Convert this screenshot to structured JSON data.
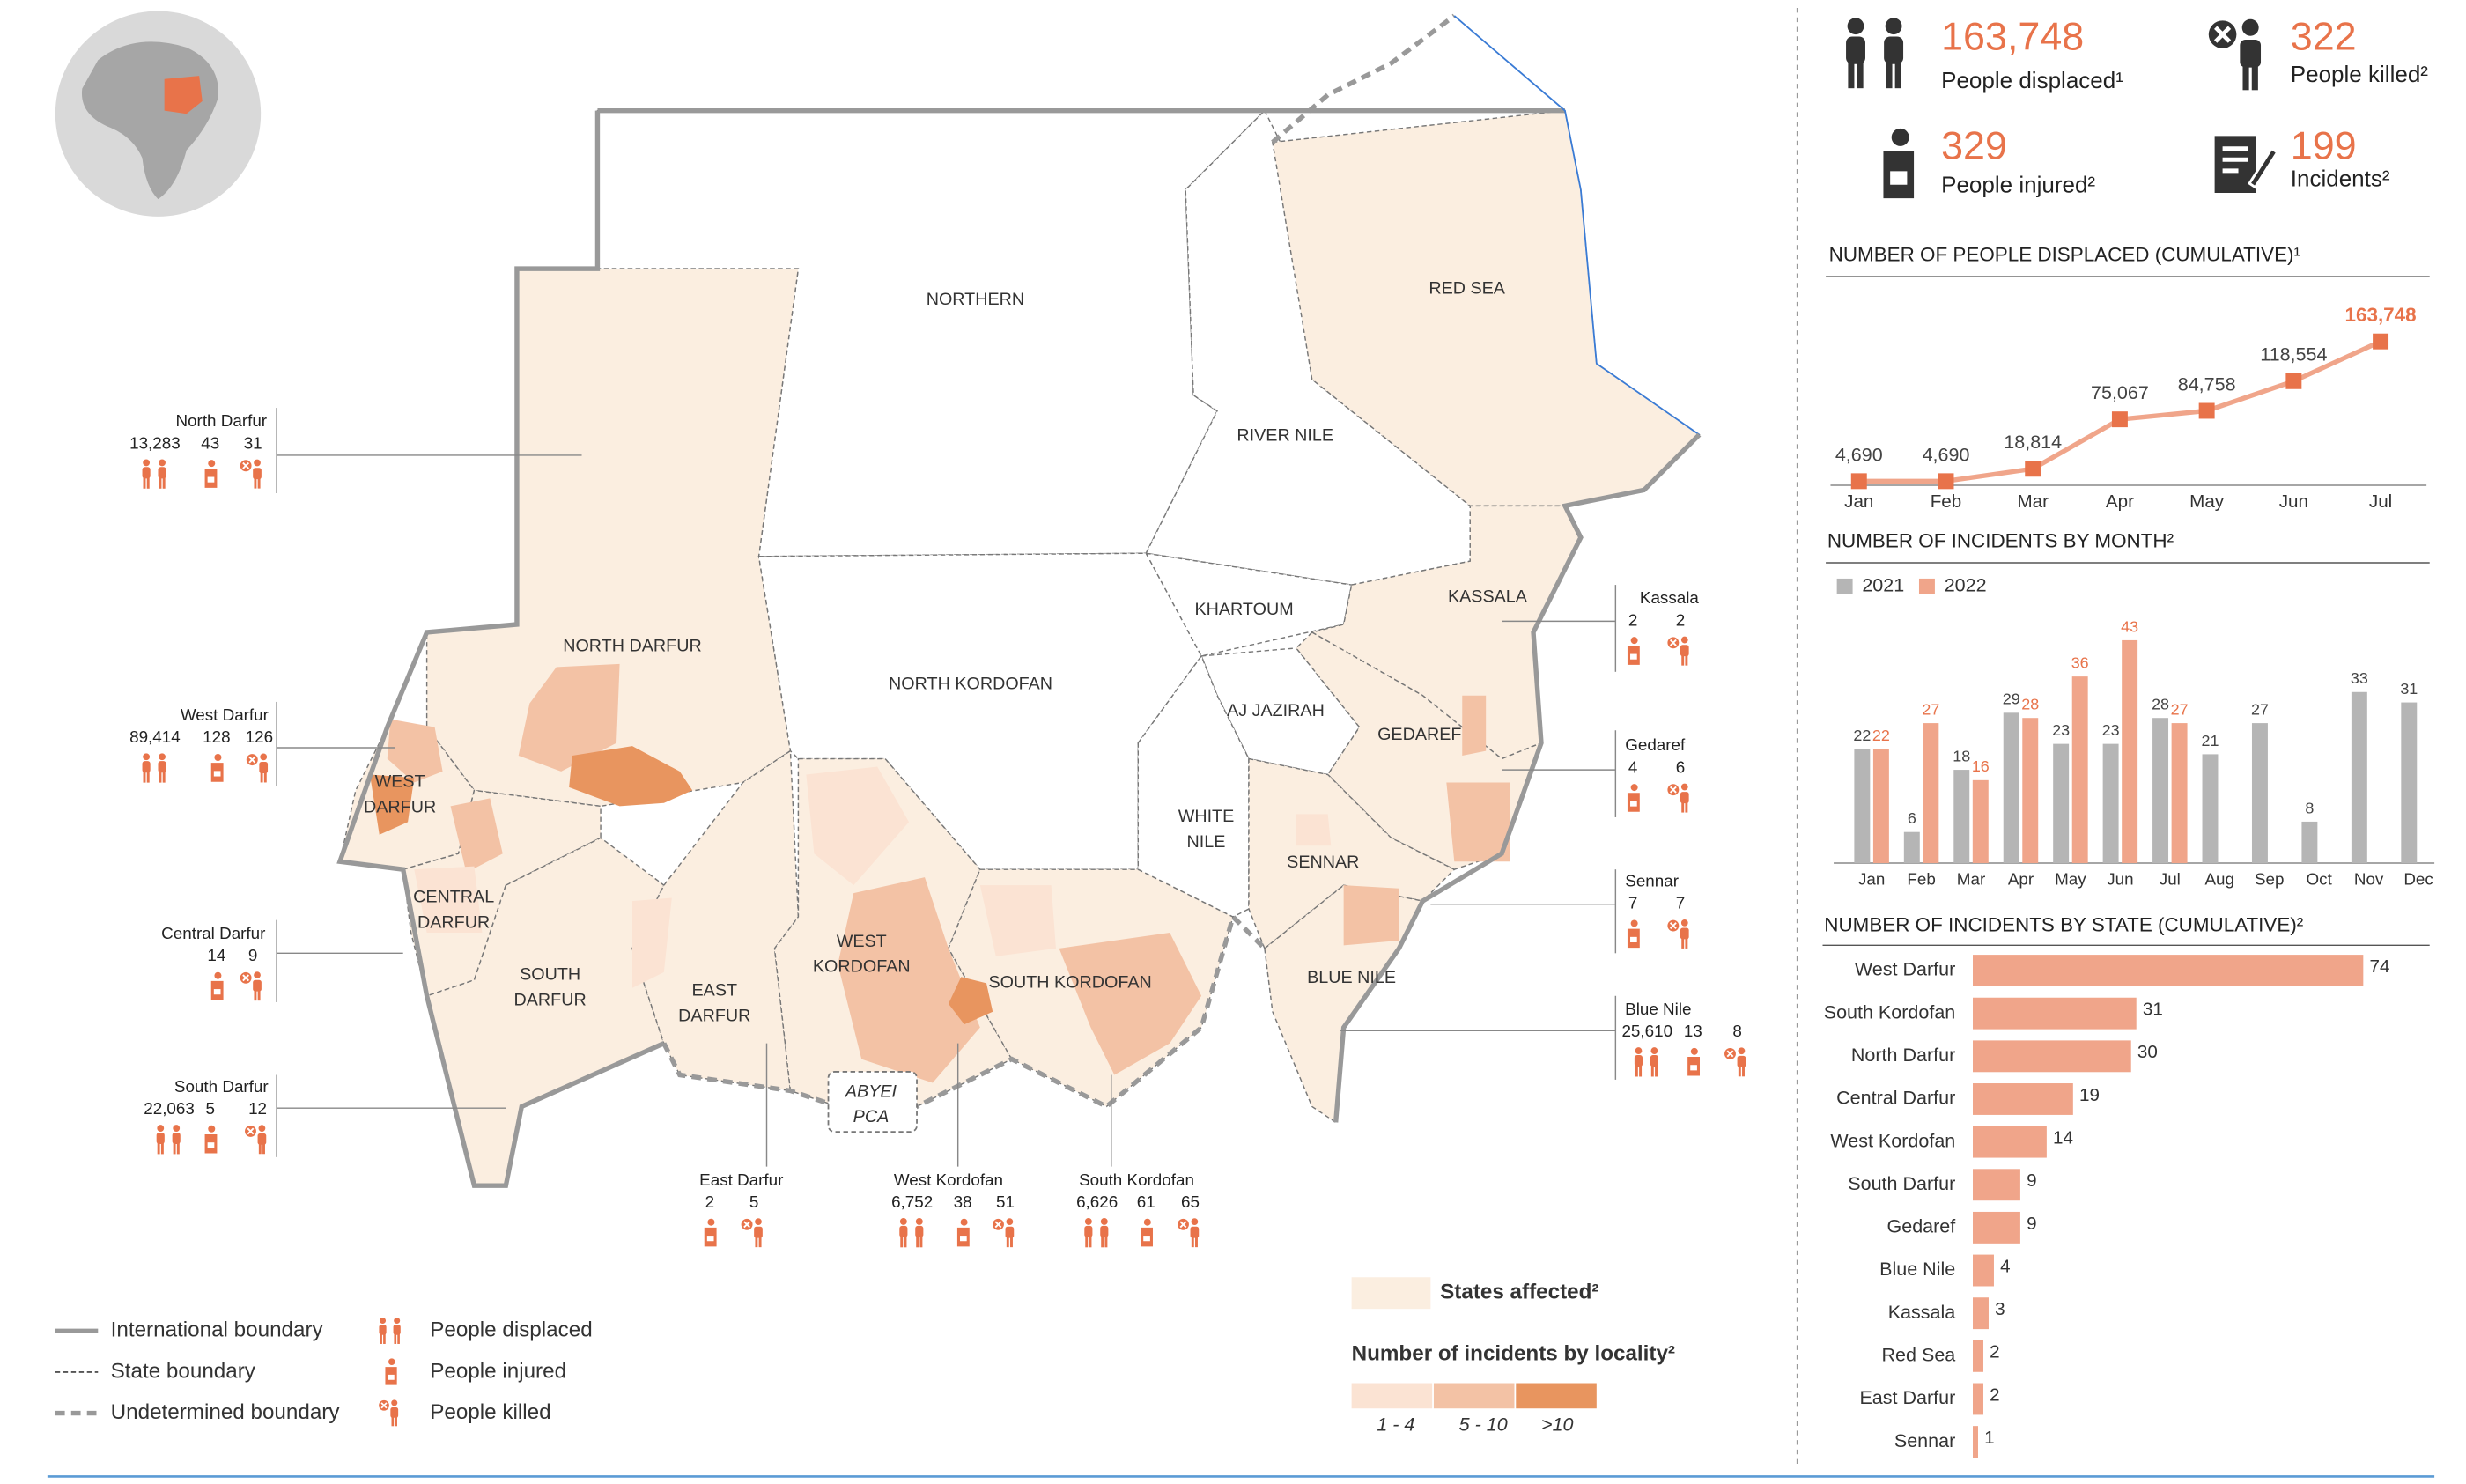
{
  "summary": [
    {
      "value": "163,748",
      "label": "People displaced¹"
    },
    {
      "value": "322",
      "label": "People killed²"
    },
    {
      "value": "329",
      "label": "People injured²"
    },
    {
      "value": "199",
      "label": "Incidents²"
    }
  ],
  "chart_data": [
    {
      "type": "line",
      "title": "NUMBER OF PEOPLE DISPLACED (CUMULATIVE)¹",
      "categories": [
        "Jan",
        "Feb",
        "Mar",
        "Apr",
        "May",
        "Jun",
        "Jul"
      ],
      "values": [
        4690,
        4690,
        18814,
        75067,
        84758,
        118554,
        163748
      ],
      "value_labels": [
        "4,690",
        "4,690",
        "18,814",
        "75,067",
        "84,758",
        "118,554",
        "163,748"
      ],
      "color": "#e8734a"
    },
    {
      "type": "bar",
      "title": "NUMBER OF INCIDENTS BY MONTH²",
      "categories": [
        "Jan",
        "Feb",
        "Mar",
        "Apr",
        "May",
        "Jun",
        "Jul",
        "Aug",
        "Sep",
        "Oct",
        "Nov",
        "Dec"
      ],
      "series": [
        {
          "name": "2021",
          "color": "#b5b5b5",
          "values": [
            22,
            6,
            18,
            29,
            23,
            23,
            28,
            21,
            27,
            8,
            33,
            31
          ]
        },
        {
          "name": "2022",
          "color": "#f0a58a",
          "values": [
            22,
            27,
            16,
            28,
            36,
            43,
            27,
            null,
            null,
            null,
            null,
            null
          ]
        }
      ]
    },
    {
      "type": "hbar",
      "title": "NUMBER OF INCIDENTS BY STATE (CUMULATIVE)²",
      "categories": [
        "West Darfur",
        "South Kordofan",
        "North Darfur",
        "Central Darfur",
        "West Kordofan",
        "South Darfur",
        "Gedaref",
        "Blue Nile",
        "Kassala",
        "Red Sea",
        "East Darfur",
        "Sennar"
      ],
      "values": [
        74,
        31,
        30,
        19,
        14,
        9,
        9,
        4,
        3,
        2,
        2,
        1
      ],
      "color": "#f0a58a"
    }
  ],
  "map": {
    "states": [
      {
        "lines": [
          "NORTHERN"
        ]
      },
      {
        "lines": [
          "RED SEA"
        ]
      },
      {
        "lines": [
          "RIVER NILE"
        ]
      },
      {
        "lines": [
          "NORTH DARFUR"
        ]
      },
      {
        "lines": [
          "NORTH KORDOFAN"
        ]
      },
      {
        "lines": [
          "KHARTOUM"
        ]
      },
      {
        "lines": [
          "KASSALA"
        ]
      },
      {
        "lines": [
          "AJ JAZIRAH"
        ]
      },
      {
        "lines": [
          "GEDAREF"
        ]
      },
      {
        "lines": [
          "WEST",
          "DARFUR"
        ]
      },
      {
        "lines": [
          "CENTRAL",
          "DARFUR"
        ]
      },
      {
        "lines": [
          "WHITE",
          "NILE"
        ]
      },
      {
        "lines": [
          "SENNAR"
        ]
      },
      {
        "lines": [
          "SOUTH",
          "DARFUR"
        ]
      },
      {
        "lines": [
          "EAST",
          "DARFUR"
        ]
      },
      {
        "lines": [
          "WEST",
          "KORDOFAN"
        ]
      },
      {
        "lines": [
          "SOUTH KORDOFAN"
        ]
      },
      {
        "lines": [
          "BLUE NILE"
        ]
      },
      {
        "lines": [
          "ABYEI",
          "PCA"
        ]
      }
    ],
    "callouts": [
      {
        "name": "North Darfur",
        "displaced": "13,283",
        "injured": "43",
        "killed": "31"
      },
      {
        "name": "West Darfur",
        "displaced": "89,414",
        "injured": "128",
        "killed": "126"
      },
      {
        "name": "Central Darfur",
        "injured": "14",
        "killed": "9"
      },
      {
        "name": "South Darfur",
        "displaced": "22,063",
        "injured": "5",
        "killed": "12"
      },
      {
        "name": "East Darfur",
        "injured": "2",
        "killed": "5"
      },
      {
        "name": "West Kordofan",
        "displaced": "6,752",
        "injured": "38",
        "killed": "51"
      },
      {
        "name": "South Kordofan",
        "displaced": "6,626",
        "injured": "61",
        "killed": "65"
      },
      {
        "name": "Kassala",
        "injured": "2",
        "killed": "2"
      },
      {
        "name": "Gedaref",
        "injured": "4",
        "killed": "6"
      },
      {
        "name": "Sennar",
        "injured": "7",
        "killed": "7"
      },
      {
        "name": "Blue Nile",
        "displaced": "25,610",
        "injured": "13",
        "killed": "8"
      }
    ]
  },
  "legend": {
    "boundaries": [
      "International boundary",
      "State boundary",
      "Undetermined boundary"
    ],
    "icons": [
      "People displaced",
      "People injured",
      "People killed"
    ],
    "states_affected": "States affected²",
    "locality_title": "Number of incidents by locality²",
    "locality_bins": [
      {
        "label": "1 - 4",
        "color": "#fbe3d3"
      },
      {
        "label": "5 - 10",
        "color": "#f3c2a5"
      },
      {
        "label": ">10",
        "color": "#e8955f"
      }
    ]
  }
}
